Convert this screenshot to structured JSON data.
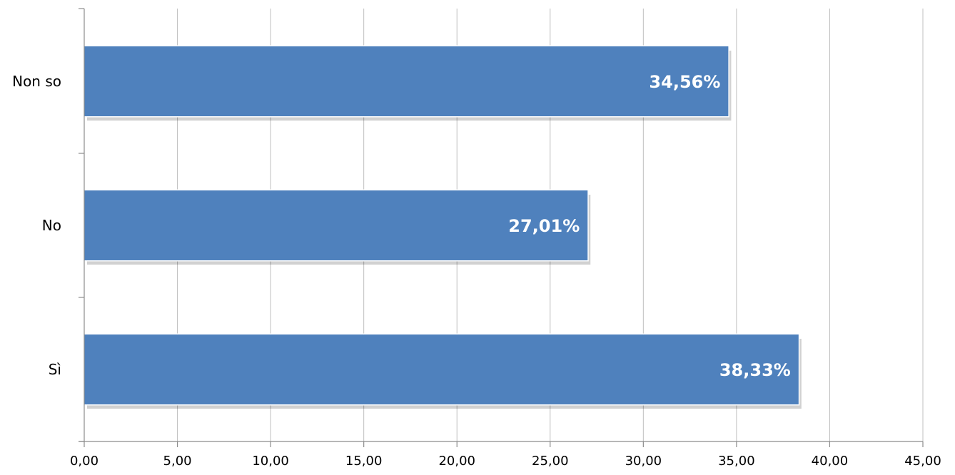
{
  "chart_data": {
    "type": "bar",
    "orientation": "horizontal",
    "categories": [
      "Non so",
      "No",
      "Sì"
    ],
    "values": [
      34.56,
      27.01,
      38.33
    ],
    "data_labels": [
      "34,56%",
      "27,01%",
      "38,33%"
    ],
    "xlim": [
      0,
      45
    ],
    "x_ticks": [
      0,
      5,
      10,
      15,
      20,
      25,
      30,
      35,
      40,
      45
    ],
    "x_tick_labels": [
      "0,00",
      "5,00",
      "10,00",
      "15,00",
      "20,00",
      "25,00",
      "30,00",
      "35,00",
      "40,00",
      "45,00"
    ],
    "grid": true,
    "legend": "none",
    "bar_color": "#4f81bd"
  }
}
